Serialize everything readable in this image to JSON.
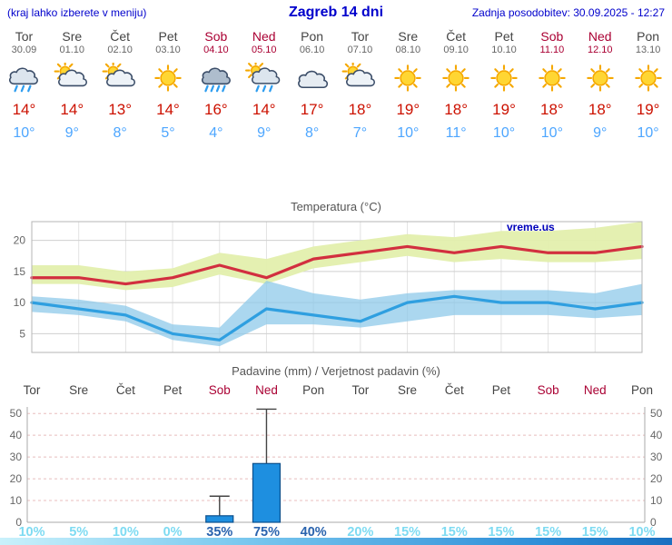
{
  "header": {
    "hint": "(kraj lahko izberete v meniju)",
    "title": "Zagreb 14 dni",
    "updated": "Zadnja posodobitev: 30.09.2025 - 12:27"
  },
  "watermark": "vreme.us",
  "forecast": {
    "days": [
      {
        "name": "Tor",
        "date": "30.09",
        "weekend": false,
        "icon": "rain",
        "high": "14°",
        "low": "10°"
      },
      {
        "name": "Sre",
        "date": "01.10",
        "weekend": false,
        "icon": "sun-cloud",
        "high": "14°",
        "low": "9°"
      },
      {
        "name": "Čet",
        "date": "02.10",
        "weekend": false,
        "icon": "sun-cloud",
        "high": "13°",
        "low": "8°"
      },
      {
        "name": "Pet",
        "date": "03.10",
        "weekend": false,
        "icon": "sun",
        "high": "14°",
        "low": "5°"
      },
      {
        "name": "Sob",
        "date": "04.10",
        "weekend": true,
        "icon": "rain-heavy",
        "high": "16°",
        "low": "4°"
      },
      {
        "name": "Ned",
        "date": "05.10",
        "weekend": true,
        "icon": "sun-rain",
        "high": "14°",
        "low": "9°"
      },
      {
        "name": "Pon",
        "date": "06.10",
        "weekend": false,
        "icon": "cloud",
        "high": "17°",
        "low": "8°"
      },
      {
        "name": "Tor",
        "date": "07.10",
        "weekend": false,
        "icon": "sun-cloud",
        "high": "18°",
        "low": "7°"
      },
      {
        "name": "Sre",
        "date": "08.10",
        "weekend": false,
        "icon": "sun",
        "high": "19°",
        "low": "10°"
      },
      {
        "name": "Čet",
        "date": "09.10",
        "weekend": false,
        "icon": "sun",
        "high": "18°",
        "low": "11°"
      },
      {
        "name": "Pet",
        "date": "10.10",
        "weekend": false,
        "icon": "sun",
        "high": "19°",
        "low": "10°"
      },
      {
        "name": "Sob",
        "date": "11.10",
        "weekend": true,
        "icon": "sun",
        "high": "18°",
        "low": "10°"
      },
      {
        "name": "Ned",
        "date": "12.10",
        "weekend": true,
        "icon": "sun",
        "high": "18°",
        "low": "9°"
      },
      {
        "name": "Pon",
        "date": "13.10",
        "weekend": false,
        "icon": "sun",
        "high": "19°",
        "low": "10°"
      }
    ]
  },
  "chart_data": [
    {
      "type": "line",
      "title": "Temperatura (°C)",
      "x": [
        "Tor 30.09",
        "Sre 01.10",
        "Čet 02.10",
        "Pet 03.10",
        "Sob 04.10",
        "Ned 05.10",
        "Pon 06.10",
        "Tor 07.10",
        "Sre 08.10",
        "Čet 09.10",
        "Pet 10.10",
        "Sob 11.10",
        "Ned 12.10",
        "Pon 13.10"
      ],
      "ylim": [
        2,
        23
      ],
      "yticks": [
        5,
        10,
        15,
        20
      ],
      "grid": true,
      "legend": "none",
      "series": [
        {
          "name": "max_temp",
          "color": "#d22f3f",
          "values": [
            14,
            14,
            13,
            14,
            16,
            14,
            17,
            18,
            19,
            18,
            19,
            18,
            18,
            19
          ]
        },
        {
          "name": "min_temp",
          "color": "#2f9fe0",
          "values": [
            10,
            9,
            8,
            5,
            4,
            9,
            8,
            7,
            10,
            11,
            10,
            10,
            9,
            10
          ]
        },
        {
          "name": "max_band_upper",
          "color": "#e3efad",
          "values": [
            16,
            16,
            15,
            15.5,
            18,
            17,
            19,
            20,
            21,
            20.5,
            21.5,
            21.5,
            22,
            23
          ]
        },
        {
          "name": "max_band_lower",
          "color": "#e3efad",
          "values": [
            13,
            13,
            12,
            12.5,
            14.5,
            13,
            15.5,
            16.5,
            17.5,
            16.5,
            17,
            16.5,
            16.5,
            17
          ]
        },
        {
          "name": "min_band_upper",
          "color": "#8fc9e9",
          "values": [
            11,
            10.5,
            9.5,
            6.5,
            6,
            13.5,
            11.5,
            10.5,
            11.5,
            12,
            12,
            12,
            11.5,
            13
          ]
        },
        {
          "name": "min_band_lower",
          "color": "#8fc9e9",
          "values": [
            8.5,
            8,
            7,
            4,
            3,
            6.5,
            6.5,
            6,
            7,
            8,
            8,
            8,
            7.5,
            8
          ]
        }
      ]
    },
    {
      "type": "bar",
      "title": "Padavine (mm) / Verjetnost padavin (%)",
      "categories": [
        "Tor",
        "Sre",
        "Čet",
        "Pet",
        "Sob",
        "Ned",
        "Pon",
        "Tor",
        "Sre",
        "Čet",
        "Pet",
        "Sob",
        "Ned",
        "Pon"
      ],
      "weekend": [
        false,
        false,
        false,
        false,
        true,
        true,
        false,
        false,
        false,
        false,
        false,
        true,
        true,
        false
      ],
      "values": [
        0,
        0,
        0,
        0,
        3,
        27,
        0,
        0,
        0,
        0,
        0,
        0,
        0,
        0
      ],
      "whiskers": [
        0,
        0,
        0,
        0,
        12,
        52,
        0,
        0,
        0,
        0,
        0,
        0,
        0,
        0
      ],
      "probabilities": [
        "10%",
        "5%",
        "10%",
        "0%",
        "35%",
        "75%",
        "40%",
        "20%",
        "15%",
        "15%",
        "15%",
        "15%",
        "15%",
        "10%"
      ],
      "ylim": [
        0,
        53
      ],
      "yticks": [
        0,
        10,
        20,
        30,
        40,
        50
      ]
    }
  ],
  "colors": {
    "header_blue": "#0000cc",
    "weekend_red": "#aa0033",
    "high_red": "#cc1100",
    "low_blue": "#4da6ff",
    "max_line": "#d22f3f",
    "min_line": "#2f9fe0",
    "max_band": "#e3efad",
    "min_band": "#8fc9e9",
    "bar_fill": "#1e8fe0",
    "bar_border": "#0b4f8c",
    "percent_low": "#7edbf2",
    "percent_high": "#2a63ae",
    "grid_pink": "#e8bdbd"
  }
}
